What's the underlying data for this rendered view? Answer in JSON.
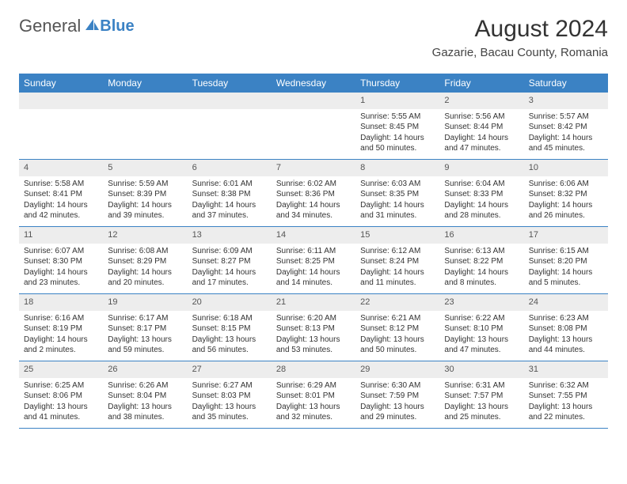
{
  "brand": {
    "general": "General",
    "blue": "Blue"
  },
  "title": "August 2024",
  "location": "Gazarie, Bacau County, Romania",
  "colors": {
    "accent": "#3b82c4",
    "daybar": "#ededed",
    "text": "#333333",
    "bg": "#ffffff"
  },
  "weekdays": [
    "Sunday",
    "Monday",
    "Tuesday",
    "Wednesday",
    "Thursday",
    "Friday",
    "Saturday"
  ],
  "weeks": [
    [
      null,
      null,
      null,
      null,
      {
        "day": "1",
        "sunrise": "Sunrise: 5:55 AM",
        "sunset": "Sunset: 8:45 PM",
        "daylight1": "Daylight: 14 hours",
        "daylight2": "and 50 minutes."
      },
      {
        "day": "2",
        "sunrise": "Sunrise: 5:56 AM",
        "sunset": "Sunset: 8:44 PM",
        "daylight1": "Daylight: 14 hours",
        "daylight2": "and 47 minutes."
      },
      {
        "day": "3",
        "sunrise": "Sunrise: 5:57 AM",
        "sunset": "Sunset: 8:42 PM",
        "daylight1": "Daylight: 14 hours",
        "daylight2": "and 45 minutes."
      }
    ],
    [
      {
        "day": "4",
        "sunrise": "Sunrise: 5:58 AM",
        "sunset": "Sunset: 8:41 PM",
        "daylight1": "Daylight: 14 hours",
        "daylight2": "and 42 minutes."
      },
      {
        "day": "5",
        "sunrise": "Sunrise: 5:59 AM",
        "sunset": "Sunset: 8:39 PM",
        "daylight1": "Daylight: 14 hours",
        "daylight2": "and 39 minutes."
      },
      {
        "day": "6",
        "sunrise": "Sunrise: 6:01 AM",
        "sunset": "Sunset: 8:38 PM",
        "daylight1": "Daylight: 14 hours",
        "daylight2": "and 37 minutes."
      },
      {
        "day": "7",
        "sunrise": "Sunrise: 6:02 AM",
        "sunset": "Sunset: 8:36 PM",
        "daylight1": "Daylight: 14 hours",
        "daylight2": "and 34 minutes."
      },
      {
        "day": "8",
        "sunrise": "Sunrise: 6:03 AM",
        "sunset": "Sunset: 8:35 PM",
        "daylight1": "Daylight: 14 hours",
        "daylight2": "and 31 minutes."
      },
      {
        "day": "9",
        "sunrise": "Sunrise: 6:04 AM",
        "sunset": "Sunset: 8:33 PM",
        "daylight1": "Daylight: 14 hours",
        "daylight2": "and 28 minutes."
      },
      {
        "day": "10",
        "sunrise": "Sunrise: 6:06 AM",
        "sunset": "Sunset: 8:32 PM",
        "daylight1": "Daylight: 14 hours",
        "daylight2": "and 26 minutes."
      }
    ],
    [
      {
        "day": "11",
        "sunrise": "Sunrise: 6:07 AM",
        "sunset": "Sunset: 8:30 PM",
        "daylight1": "Daylight: 14 hours",
        "daylight2": "and 23 minutes."
      },
      {
        "day": "12",
        "sunrise": "Sunrise: 6:08 AM",
        "sunset": "Sunset: 8:29 PM",
        "daylight1": "Daylight: 14 hours",
        "daylight2": "and 20 minutes."
      },
      {
        "day": "13",
        "sunrise": "Sunrise: 6:09 AM",
        "sunset": "Sunset: 8:27 PM",
        "daylight1": "Daylight: 14 hours",
        "daylight2": "and 17 minutes."
      },
      {
        "day": "14",
        "sunrise": "Sunrise: 6:11 AM",
        "sunset": "Sunset: 8:25 PM",
        "daylight1": "Daylight: 14 hours",
        "daylight2": "and 14 minutes."
      },
      {
        "day": "15",
        "sunrise": "Sunrise: 6:12 AM",
        "sunset": "Sunset: 8:24 PM",
        "daylight1": "Daylight: 14 hours",
        "daylight2": "and 11 minutes."
      },
      {
        "day": "16",
        "sunrise": "Sunrise: 6:13 AM",
        "sunset": "Sunset: 8:22 PM",
        "daylight1": "Daylight: 14 hours",
        "daylight2": "and 8 minutes."
      },
      {
        "day": "17",
        "sunrise": "Sunrise: 6:15 AM",
        "sunset": "Sunset: 8:20 PM",
        "daylight1": "Daylight: 14 hours",
        "daylight2": "and 5 minutes."
      }
    ],
    [
      {
        "day": "18",
        "sunrise": "Sunrise: 6:16 AM",
        "sunset": "Sunset: 8:19 PM",
        "daylight1": "Daylight: 14 hours",
        "daylight2": "and 2 minutes."
      },
      {
        "day": "19",
        "sunrise": "Sunrise: 6:17 AM",
        "sunset": "Sunset: 8:17 PM",
        "daylight1": "Daylight: 13 hours",
        "daylight2": "and 59 minutes."
      },
      {
        "day": "20",
        "sunrise": "Sunrise: 6:18 AM",
        "sunset": "Sunset: 8:15 PM",
        "daylight1": "Daylight: 13 hours",
        "daylight2": "and 56 minutes."
      },
      {
        "day": "21",
        "sunrise": "Sunrise: 6:20 AM",
        "sunset": "Sunset: 8:13 PM",
        "daylight1": "Daylight: 13 hours",
        "daylight2": "and 53 minutes."
      },
      {
        "day": "22",
        "sunrise": "Sunrise: 6:21 AM",
        "sunset": "Sunset: 8:12 PM",
        "daylight1": "Daylight: 13 hours",
        "daylight2": "and 50 minutes."
      },
      {
        "day": "23",
        "sunrise": "Sunrise: 6:22 AM",
        "sunset": "Sunset: 8:10 PM",
        "daylight1": "Daylight: 13 hours",
        "daylight2": "and 47 minutes."
      },
      {
        "day": "24",
        "sunrise": "Sunrise: 6:23 AM",
        "sunset": "Sunset: 8:08 PM",
        "daylight1": "Daylight: 13 hours",
        "daylight2": "and 44 minutes."
      }
    ],
    [
      {
        "day": "25",
        "sunrise": "Sunrise: 6:25 AM",
        "sunset": "Sunset: 8:06 PM",
        "daylight1": "Daylight: 13 hours",
        "daylight2": "and 41 minutes."
      },
      {
        "day": "26",
        "sunrise": "Sunrise: 6:26 AM",
        "sunset": "Sunset: 8:04 PM",
        "daylight1": "Daylight: 13 hours",
        "daylight2": "and 38 minutes."
      },
      {
        "day": "27",
        "sunrise": "Sunrise: 6:27 AM",
        "sunset": "Sunset: 8:03 PM",
        "daylight1": "Daylight: 13 hours",
        "daylight2": "and 35 minutes."
      },
      {
        "day": "28",
        "sunrise": "Sunrise: 6:29 AM",
        "sunset": "Sunset: 8:01 PM",
        "daylight1": "Daylight: 13 hours",
        "daylight2": "and 32 minutes."
      },
      {
        "day": "29",
        "sunrise": "Sunrise: 6:30 AM",
        "sunset": "Sunset: 7:59 PM",
        "daylight1": "Daylight: 13 hours",
        "daylight2": "and 29 minutes."
      },
      {
        "day": "30",
        "sunrise": "Sunrise: 6:31 AM",
        "sunset": "Sunset: 7:57 PM",
        "daylight1": "Daylight: 13 hours",
        "daylight2": "and 25 minutes."
      },
      {
        "day": "31",
        "sunrise": "Sunrise: 6:32 AM",
        "sunset": "Sunset: 7:55 PM",
        "daylight1": "Daylight: 13 hours",
        "daylight2": "and 22 minutes."
      }
    ]
  ]
}
